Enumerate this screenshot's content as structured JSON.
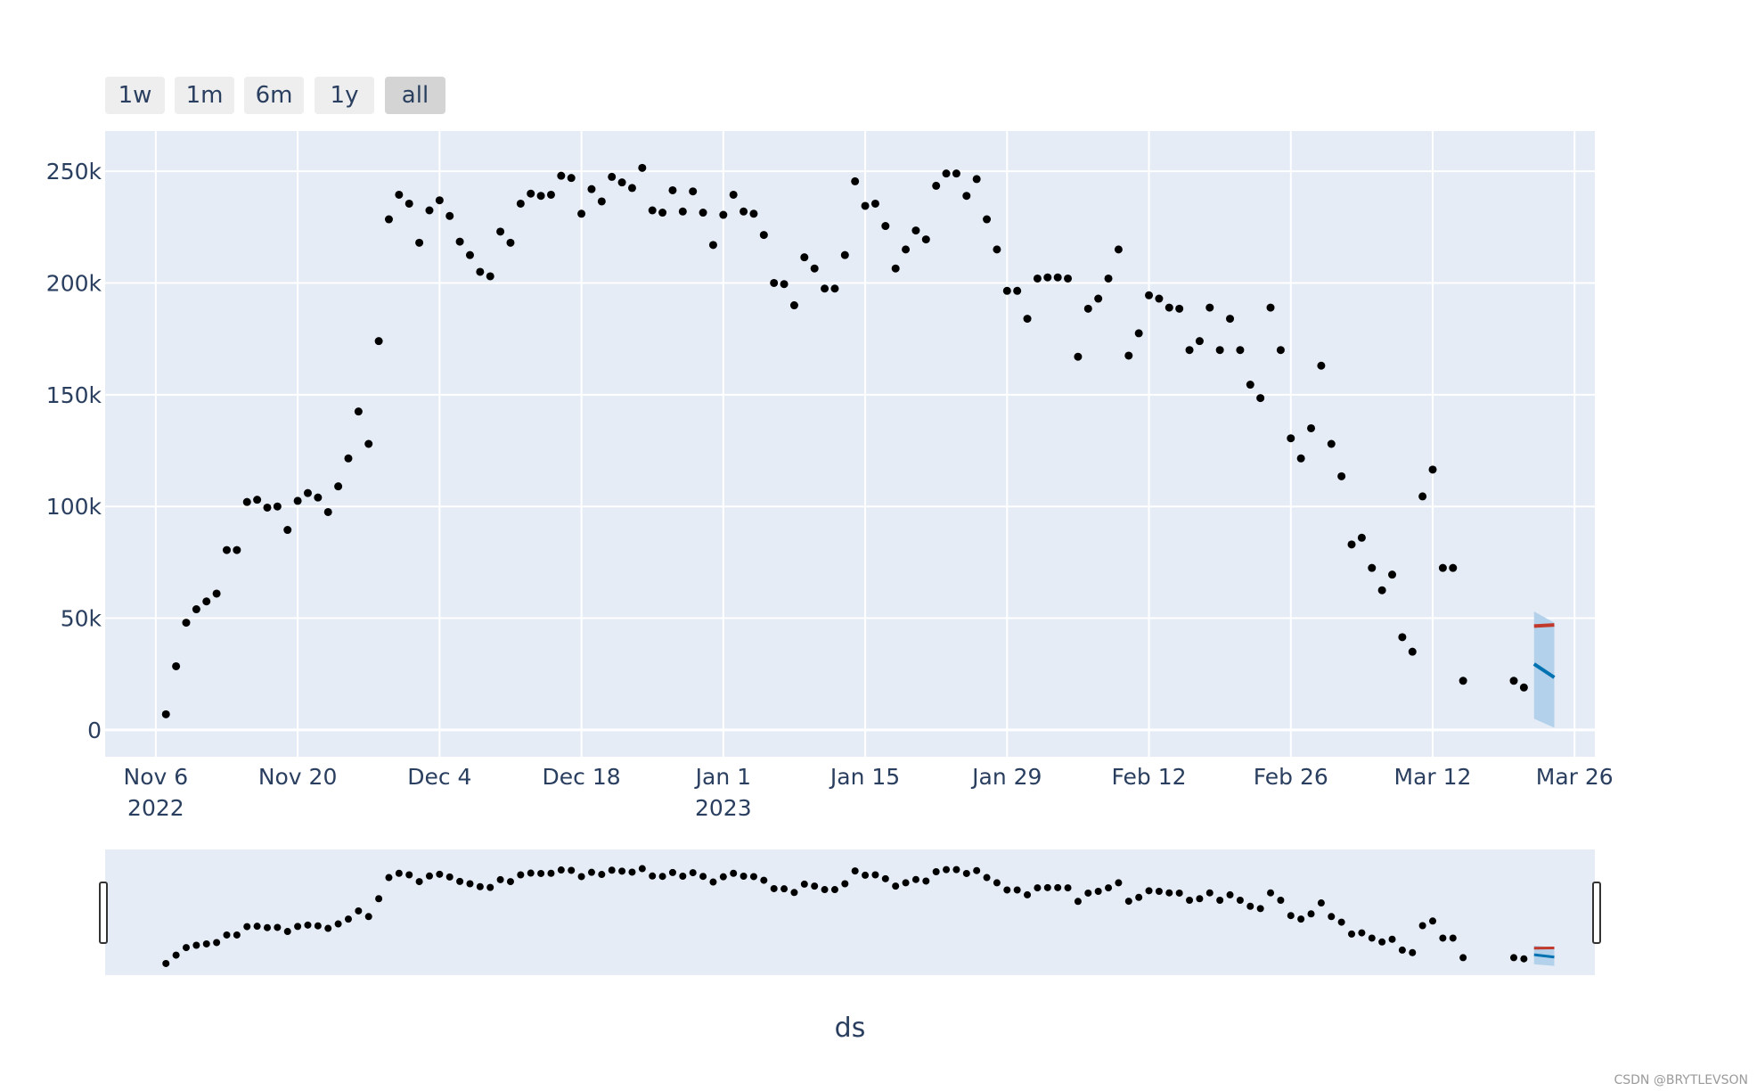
{
  "rangeselector": {
    "buttons": [
      {
        "label": "1w",
        "active": false
      },
      {
        "label": "1m",
        "active": false
      },
      {
        "label": "6m",
        "active": false
      },
      {
        "label": "1y",
        "active": false
      },
      {
        "label": "all",
        "active": true
      }
    ]
  },
  "watermark": "CSDN @BRYTLEVSON",
  "colors": {
    "plot_bg": "#e5ecf6",
    "grid": "#ffffff",
    "points": "#000000",
    "forecast_line": "#0072b2",
    "forecast_band": "#b3d1ea",
    "cap_line": "#c0392b",
    "button_bg": "#eeeeee",
    "button_active_bg": "#d4d4d4",
    "text": "#2a3f5f"
  },
  "chart_data": {
    "type": "scatter",
    "title": "",
    "xlabel": "ds",
    "ylabel": "",
    "xlim": [
      "2022-11-01",
      "2023-03-28"
    ],
    "ylim": [
      -12000,
      268000
    ],
    "x_ticks": [
      {
        "date": "2022-11-06",
        "label": "Nov 6",
        "sublabel": "2022"
      },
      {
        "date": "2022-11-20",
        "label": "Nov 20",
        "sublabel": ""
      },
      {
        "date": "2022-12-04",
        "label": "Dec 4",
        "sublabel": ""
      },
      {
        "date": "2022-12-18",
        "label": "Dec 18",
        "sublabel": ""
      },
      {
        "date": "2023-01-01",
        "label": "Jan 1",
        "sublabel": "2023"
      },
      {
        "date": "2023-01-15",
        "label": "Jan 15",
        "sublabel": ""
      },
      {
        "date": "2023-01-29",
        "label": "Jan 29",
        "sublabel": ""
      },
      {
        "date": "2023-02-12",
        "label": "Feb 12",
        "sublabel": ""
      },
      {
        "date": "2023-02-26",
        "label": "Feb 26",
        "sublabel": ""
      },
      {
        "date": "2023-03-12",
        "label": "Mar 12",
        "sublabel": ""
      },
      {
        "date": "2023-03-26",
        "label": "Mar 26",
        "sublabel": ""
      }
    ],
    "y_ticks": [
      {
        "value": 0,
        "label": "0"
      },
      {
        "value": 50000,
        "label": "50k"
      },
      {
        "value": 100000,
        "label": "100k"
      },
      {
        "value": 150000,
        "label": "150k"
      },
      {
        "value": 200000,
        "label": "200k"
      },
      {
        "value": 250000,
        "label": "250k"
      }
    ],
    "grid": true,
    "series": [
      {
        "kind": "actual",
        "points": [
          [
            "2022-11-07",
            7000
          ],
          [
            "2022-11-08",
            28500
          ],
          [
            "2022-11-09",
            48000
          ],
          [
            "2022-11-10",
            54000
          ],
          [
            "2022-11-11",
            57500
          ],
          [
            "2022-11-12",
            61000
          ],
          [
            "2022-11-13",
            80500
          ],
          [
            "2022-11-14",
            80500
          ],
          [
            "2022-11-15",
            102000
          ],
          [
            "2022-11-16",
            103000
          ],
          [
            "2022-11-17",
            99500
          ],
          [
            "2022-11-18",
            100000
          ],
          [
            "2022-11-19",
            89500
          ],
          [
            "2022-11-20",
            102500
          ],
          [
            "2022-11-21",
            106000
          ],
          [
            "2022-11-22",
            104000
          ],
          [
            "2022-11-23",
            97500
          ],
          [
            "2022-11-24",
            109000
          ],
          [
            "2022-11-25",
            121500
          ],
          [
            "2022-11-26",
            142500
          ],
          [
            "2022-11-27",
            128000
          ],
          [
            "2022-11-28",
            174000
          ],
          [
            "2022-11-29",
            228500
          ],
          [
            "2022-11-30",
            239500
          ],
          [
            "2022-12-01",
            235500
          ],
          [
            "2022-12-02",
            218000
          ],
          [
            "2022-12-03",
            232500
          ],
          [
            "2022-12-04",
            237000
          ],
          [
            "2022-12-05",
            230000
          ],
          [
            "2022-12-06",
            218500
          ],
          [
            "2022-12-07",
            212500
          ],
          [
            "2022-12-08",
            205000
          ],
          [
            "2022-12-09",
            203000
          ],
          [
            "2022-12-10",
            223000
          ],
          [
            "2022-12-11",
            218000
          ],
          [
            "2022-12-12",
            235500
          ],
          [
            "2022-12-13",
            240000
          ],
          [
            "2022-12-14",
            239000
          ],
          [
            "2022-12-15",
            239500
          ],
          [
            "2022-12-16",
            248000
          ],
          [
            "2022-12-17",
            247000
          ],
          [
            "2022-12-18",
            231000
          ],
          [
            "2022-12-19",
            242000
          ],
          [
            "2022-12-20",
            236500
          ],
          [
            "2022-12-21",
            247500
          ],
          [
            "2022-12-22",
            245000
          ],
          [
            "2022-12-23",
            242500
          ],
          [
            "2022-12-24",
            251500
          ],
          [
            "2022-12-25",
            232500
          ],
          [
            "2022-12-26",
            231500
          ],
          [
            "2022-12-27",
            241500
          ],
          [
            "2022-12-28",
            232000
          ],
          [
            "2022-12-29",
            241000
          ],
          [
            "2022-12-30",
            231500
          ],
          [
            "2022-12-31",
            217000
          ],
          [
            "2023-01-01",
            230500
          ],
          [
            "2023-01-02",
            239500
          ],
          [
            "2023-01-03",
            232000
          ],
          [
            "2023-01-04",
            231000
          ],
          [
            "2023-01-05",
            221500
          ],
          [
            "2023-01-06",
            200000
          ],
          [
            "2023-01-07",
            199500
          ],
          [
            "2023-01-08",
            190000
          ],
          [
            "2023-01-09",
            211500
          ],
          [
            "2023-01-10",
            206500
          ],
          [
            "2023-01-11",
            197500
          ],
          [
            "2023-01-12",
            197500
          ],
          [
            "2023-01-13",
            212500
          ],
          [
            "2023-01-14",
            245500
          ],
          [
            "2023-01-15",
            234500
          ],
          [
            "2023-01-16",
            235500
          ],
          [
            "2023-01-17",
            225500
          ],
          [
            "2023-01-18",
            206500
          ],
          [
            "2023-01-19",
            215000
          ],
          [
            "2023-01-20",
            223500
          ],
          [
            "2023-01-21",
            219500
          ],
          [
            "2023-01-22",
            243500
          ],
          [
            "2023-01-23",
            249000
          ],
          [
            "2023-01-24",
            249000
          ],
          [
            "2023-01-25",
            239000
          ],
          [
            "2023-01-26",
            246500
          ],
          [
            "2023-01-27",
            228500
          ],
          [
            "2023-01-28",
            215000
          ],
          [
            "2023-01-29",
            196500
          ],
          [
            "2023-01-30",
            196500
          ],
          [
            "2023-01-31",
            184000
          ],
          [
            "2023-02-01",
            202000
          ],
          [
            "2023-02-02",
            202500
          ],
          [
            "2023-02-03",
            202500
          ],
          [
            "2023-02-04",
            202000
          ],
          [
            "2023-02-05",
            167000
          ],
          [
            "2023-02-06",
            188500
          ],
          [
            "2023-02-07",
            193000
          ],
          [
            "2023-02-08",
            202000
          ],
          [
            "2023-02-09",
            215000
          ],
          [
            "2023-02-10",
            167500
          ],
          [
            "2023-02-11",
            177500
          ],
          [
            "2023-02-12",
            194500
          ],
          [
            "2023-02-13",
            193000
          ],
          [
            "2023-02-14",
            189000
          ],
          [
            "2023-02-15",
            188500
          ],
          [
            "2023-02-16",
            170000
          ],
          [
            "2023-02-17",
            174000
          ],
          [
            "2023-02-18",
            189000
          ],
          [
            "2023-02-19",
            170000
          ],
          [
            "2023-02-20",
            184000
          ],
          [
            "2023-02-21",
            170000
          ],
          [
            "2023-02-22",
            154500
          ],
          [
            "2023-02-23",
            148500
          ],
          [
            "2023-02-24",
            189000
          ],
          [
            "2023-02-25",
            170000
          ],
          [
            "2023-02-26",
            130500
          ],
          [
            "2023-02-27",
            121500
          ],
          [
            "2023-02-28",
            135000
          ],
          [
            "2023-03-01",
            163000
          ],
          [
            "2023-03-02",
            128000
          ],
          [
            "2023-03-03",
            113500
          ],
          [
            "2023-03-04",
            83000
          ],
          [
            "2023-03-05",
            86000
          ],
          [
            "2023-03-06",
            72500
          ],
          [
            "2023-03-07",
            62500
          ],
          [
            "2023-03-08",
            69500
          ],
          [
            "2023-03-09",
            41500
          ],
          [
            "2023-03-10",
            35000
          ],
          [
            "2023-03-11",
            104500
          ],
          [
            "2023-03-12",
            116500
          ],
          [
            "2023-03-13",
            72500
          ],
          [
            "2023-03-14",
            72500
          ],
          [
            "2023-03-15",
            22000
          ],
          [
            "2023-03-20",
            22000
          ],
          [
            "2023-03-21",
            19000
          ]
        ]
      },
      {
        "kind": "forecast",
        "line": [
          [
            "2023-03-22",
            29500
          ],
          [
            "2023-03-24",
            23500
          ]
        ],
        "band_upper": [
          [
            "2023-03-22",
            53000
          ],
          [
            "2023-03-24",
            48000
          ]
        ],
        "band_lower": [
          [
            "2023-03-22",
            5000
          ],
          [
            "2023-03-24",
            1000
          ]
        ],
        "cap": [
          [
            "2023-03-22",
            46500
          ],
          [
            "2023-03-24",
            47000
          ]
        ]
      }
    ],
    "rangeslider": {
      "visible": true,
      "range": [
        "2022-11-01",
        "2023-03-28"
      ]
    }
  }
}
